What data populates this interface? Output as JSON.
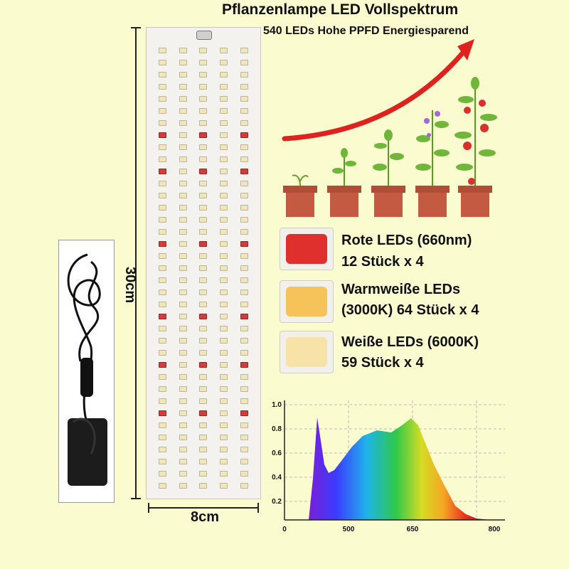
{
  "header": {
    "title": "Pflanzenlampe LED Vollspektrum",
    "subtitle": "540 LEDs Hohe PPFD Energiesparend"
  },
  "dimensions": {
    "height": "30cm",
    "width": "8cm"
  },
  "led_types": [
    {
      "line1": "Rote LEDs (660nm)",
      "line2": "12 Stück x 4",
      "chip_color": "#e0302e"
    },
    {
      "line1": "Warmweiße LEDs",
      "line2": "(3000K) 64 Stück x 4",
      "chip_color": "#f6c35a"
    },
    {
      "line1": "Weiße LEDs (6000K)",
      "line2": "59 Stück x 4",
      "chip_color": "#f7e2a8"
    }
  ],
  "spectrum": {
    "y_ticks": [
      "1.0",
      "0.8",
      "0.6",
      "0.4",
      "0.2"
    ],
    "x_ticks": [
      "0",
      "500",
      "650",
      "800"
    ]
  },
  "colors": {
    "background": "#fbfbd0",
    "arrow": "#e0221e",
    "pot": "#c55a43"
  }
}
